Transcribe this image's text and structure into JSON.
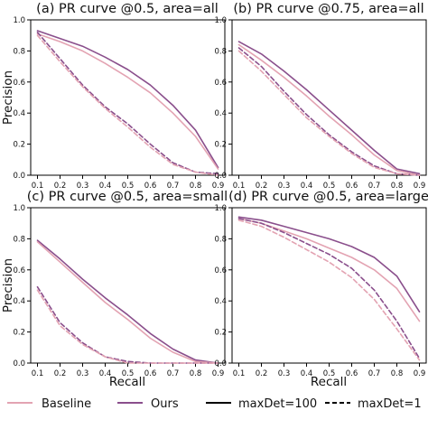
{
  "colors": {
    "baseline": "#e3a3b2",
    "ours": "#8a4f8c",
    "legend_sample": "#000000"
  },
  "legend": {
    "entries": [
      {
        "label": "Baseline",
        "color": "#e3a3b2",
        "style": "solid"
      },
      {
        "label": "Ours",
        "color": "#8a4f8c",
        "style": "solid"
      },
      {
        "label": "maxDet=100",
        "color": "#000000",
        "style": "solid"
      },
      {
        "label": "maxDet=1",
        "color": "#000000",
        "style": "dashed"
      }
    ],
    "placement": "bottom"
  },
  "chart_data": [
    {
      "type": "line",
      "title": "(a) PR curve @0.5, area=all",
      "xlabel": "",
      "ylabel": "Precision",
      "xlim": [
        0.07,
        0.93
      ],
      "ylim": [
        0.0,
        1.0
      ],
      "xticks": [
        "0.1",
        "0.2",
        "0.3",
        "0.4",
        "0.5",
        "0.6",
        "0.7",
        "0.8",
        "0.9"
      ],
      "yticks": [
        "0.0",
        "0.2",
        "0.4",
        "0.6",
        "0.8",
        "1.0"
      ],
      "grid": false,
      "x": [
        0.1,
        0.2,
        0.3,
        0.4,
        0.5,
        0.6,
        0.7,
        0.8,
        0.9
      ],
      "series": [
        {
          "name": "Ours",
          "maxDet": "100",
          "color": "#8a4f8c",
          "style": "solid",
          "values": [
            0.93,
            0.88,
            0.83,
            0.76,
            0.68,
            0.58,
            0.45,
            0.29,
            0.05
          ]
        },
        {
          "name": "Baseline",
          "maxDet": "100",
          "color": "#e3a3b2",
          "style": "solid",
          "values": [
            0.91,
            0.86,
            0.8,
            0.72,
            0.63,
            0.53,
            0.4,
            0.25,
            0.04
          ]
        },
        {
          "name": "Ours",
          "maxDet": "1",
          "color": "#8a4f8c",
          "style": "dashed",
          "values": [
            0.92,
            0.75,
            0.58,
            0.44,
            0.33,
            0.2,
            0.08,
            0.02,
            0.01
          ]
        },
        {
          "name": "Baseline",
          "maxDet": "1",
          "color": "#e3a3b2",
          "style": "dashed",
          "values": [
            0.9,
            0.73,
            0.57,
            0.43,
            0.31,
            0.18,
            0.07,
            0.02,
            0.0
          ]
        }
      ]
    },
    {
      "type": "line",
      "title": "(b) PR curve @0.75, area=all",
      "xlabel": "",
      "ylabel": "",
      "xlim": [
        0.07,
        0.93
      ],
      "ylim": [
        0.0,
        1.0
      ],
      "xticks": [
        "0.1",
        "0.2",
        "0.3",
        "0.4",
        "0.5",
        "0.6",
        "0.7",
        "0.8",
        "0.9"
      ],
      "yticks": [
        "0.0",
        "0.2",
        "0.4",
        "0.6",
        "0.8",
        "1.0"
      ],
      "grid": false,
      "x": [
        0.1,
        0.2,
        0.3,
        0.4,
        0.5,
        0.6,
        0.7,
        0.8,
        0.9
      ],
      "series": [
        {
          "name": "Ours",
          "maxDet": "100",
          "color": "#8a4f8c",
          "style": "solid",
          "values": [
            0.86,
            0.78,
            0.67,
            0.55,
            0.42,
            0.29,
            0.16,
            0.04,
            0.01
          ]
        },
        {
          "name": "Baseline",
          "maxDet": "100",
          "color": "#e3a3b2",
          "style": "solid",
          "values": [
            0.84,
            0.74,
            0.63,
            0.51,
            0.38,
            0.26,
            0.13,
            0.03,
            0.0
          ]
        },
        {
          "name": "Ours",
          "maxDet": "1",
          "color": "#8a4f8c",
          "style": "dashed",
          "values": [
            0.82,
            0.7,
            0.54,
            0.39,
            0.26,
            0.15,
            0.06,
            0.01,
            0.0
          ]
        },
        {
          "name": "Baseline",
          "maxDet": "1",
          "color": "#e3a3b2",
          "style": "dashed",
          "values": [
            0.8,
            0.67,
            0.52,
            0.37,
            0.25,
            0.14,
            0.05,
            0.01,
            0.0
          ]
        }
      ]
    },
    {
      "type": "line",
      "title": "(c) PR curve @0.5, area=small",
      "xlabel": "Recall",
      "ylabel": "Precision",
      "xlim": [
        0.07,
        0.93
      ],
      "ylim": [
        0.0,
        1.0
      ],
      "xticks": [
        "0.1",
        "0.2",
        "0.3",
        "0.4",
        "0.5",
        "0.6",
        "0.7",
        "0.8",
        "0.9"
      ],
      "yticks": [
        "0.0",
        "0.2",
        "0.4",
        "0.6",
        "0.8",
        "1.0"
      ],
      "grid": false,
      "x": [
        0.1,
        0.2,
        0.3,
        0.4,
        0.5,
        0.6,
        0.7,
        0.8,
        0.9
      ],
      "series": [
        {
          "name": "Ours",
          "maxDet": "100",
          "color": "#8a4f8c",
          "style": "solid",
          "values": [
            0.79,
            0.67,
            0.54,
            0.42,
            0.31,
            0.19,
            0.09,
            0.02,
            0.0
          ]
        },
        {
          "name": "Baseline",
          "maxDet": "100",
          "color": "#e3a3b2",
          "style": "solid",
          "values": [
            0.78,
            0.65,
            0.52,
            0.39,
            0.28,
            0.16,
            0.07,
            0.01,
            0.0
          ]
        },
        {
          "name": "Ours",
          "maxDet": "1",
          "color": "#8a4f8c",
          "style": "dashed",
          "values": [
            0.49,
            0.26,
            0.13,
            0.04,
            0.01,
            0.0,
            0.0,
            0.0,
            0.0
          ]
        },
        {
          "name": "Baseline",
          "maxDet": "1",
          "color": "#e3a3b2",
          "style": "dashed",
          "values": [
            0.47,
            0.24,
            0.12,
            0.04,
            0.0,
            0.0,
            0.0,
            0.0,
            0.0
          ]
        }
      ]
    },
    {
      "type": "line",
      "title": "(d) PR curve @0.5, area=large",
      "xlabel": "Recall",
      "ylabel": "",
      "xlim": [
        0.07,
        0.93
      ],
      "ylim": [
        0.0,
        1.0
      ],
      "xticks": [
        "0.1",
        "0.2",
        "0.3",
        "0.4",
        "0.5",
        "0.6",
        "0.7",
        "0.8",
        "0.9"
      ],
      "yticks": [
        "0.0",
        "0.2",
        "0.4",
        "0.6",
        "0.8",
        "1.0"
      ],
      "grid": false,
      "x": [
        0.1,
        0.2,
        0.3,
        0.4,
        0.5,
        0.6,
        0.7,
        0.8,
        0.9
      ],
      "series": [
        {
          "name": "Ours",
          "maxDet": "100",
          "color": "#8a4f8c",
          "style": "solid",
          "values": [
            0.94,
            0.92,
            0.88,
            0.84,
            0.8,
            0.75,
            0.68,
            0.56,
            0.33
          ]
        },
        {
          "name": "Baseline",
          "maxDet": "100",
          "color": "#e3a3b2",
          "style": "solid",
          "values": [
            0.93,
            0.9,
            0.85,
            0.8,
            0.74,
            0.68,
            0.6,
            0.48,
            0.27
          ]
        },
        {
          "name": "Ours",
          "maxDet": "1",
          "color": "#8a4f8c",
          "style": "dashed",
          "values": [
            0.93,
            0.9,
            0.84,
            0.77,
            0.7,
            0.61,
            0.47,
            0.27,
            0.03
          ]
        },
        {
          "name": "Baseline",
          "maxDet": "1",
          "color": "#e3a3b2",
          "style": "dashed",
          "values": [
            0.92,
            0.88,
            0.81,
            0.73,
            0.65,
            0.55,
            0.41,
            0.22,
            0.02
          ]
        }
      ]
    }
  ]
}
